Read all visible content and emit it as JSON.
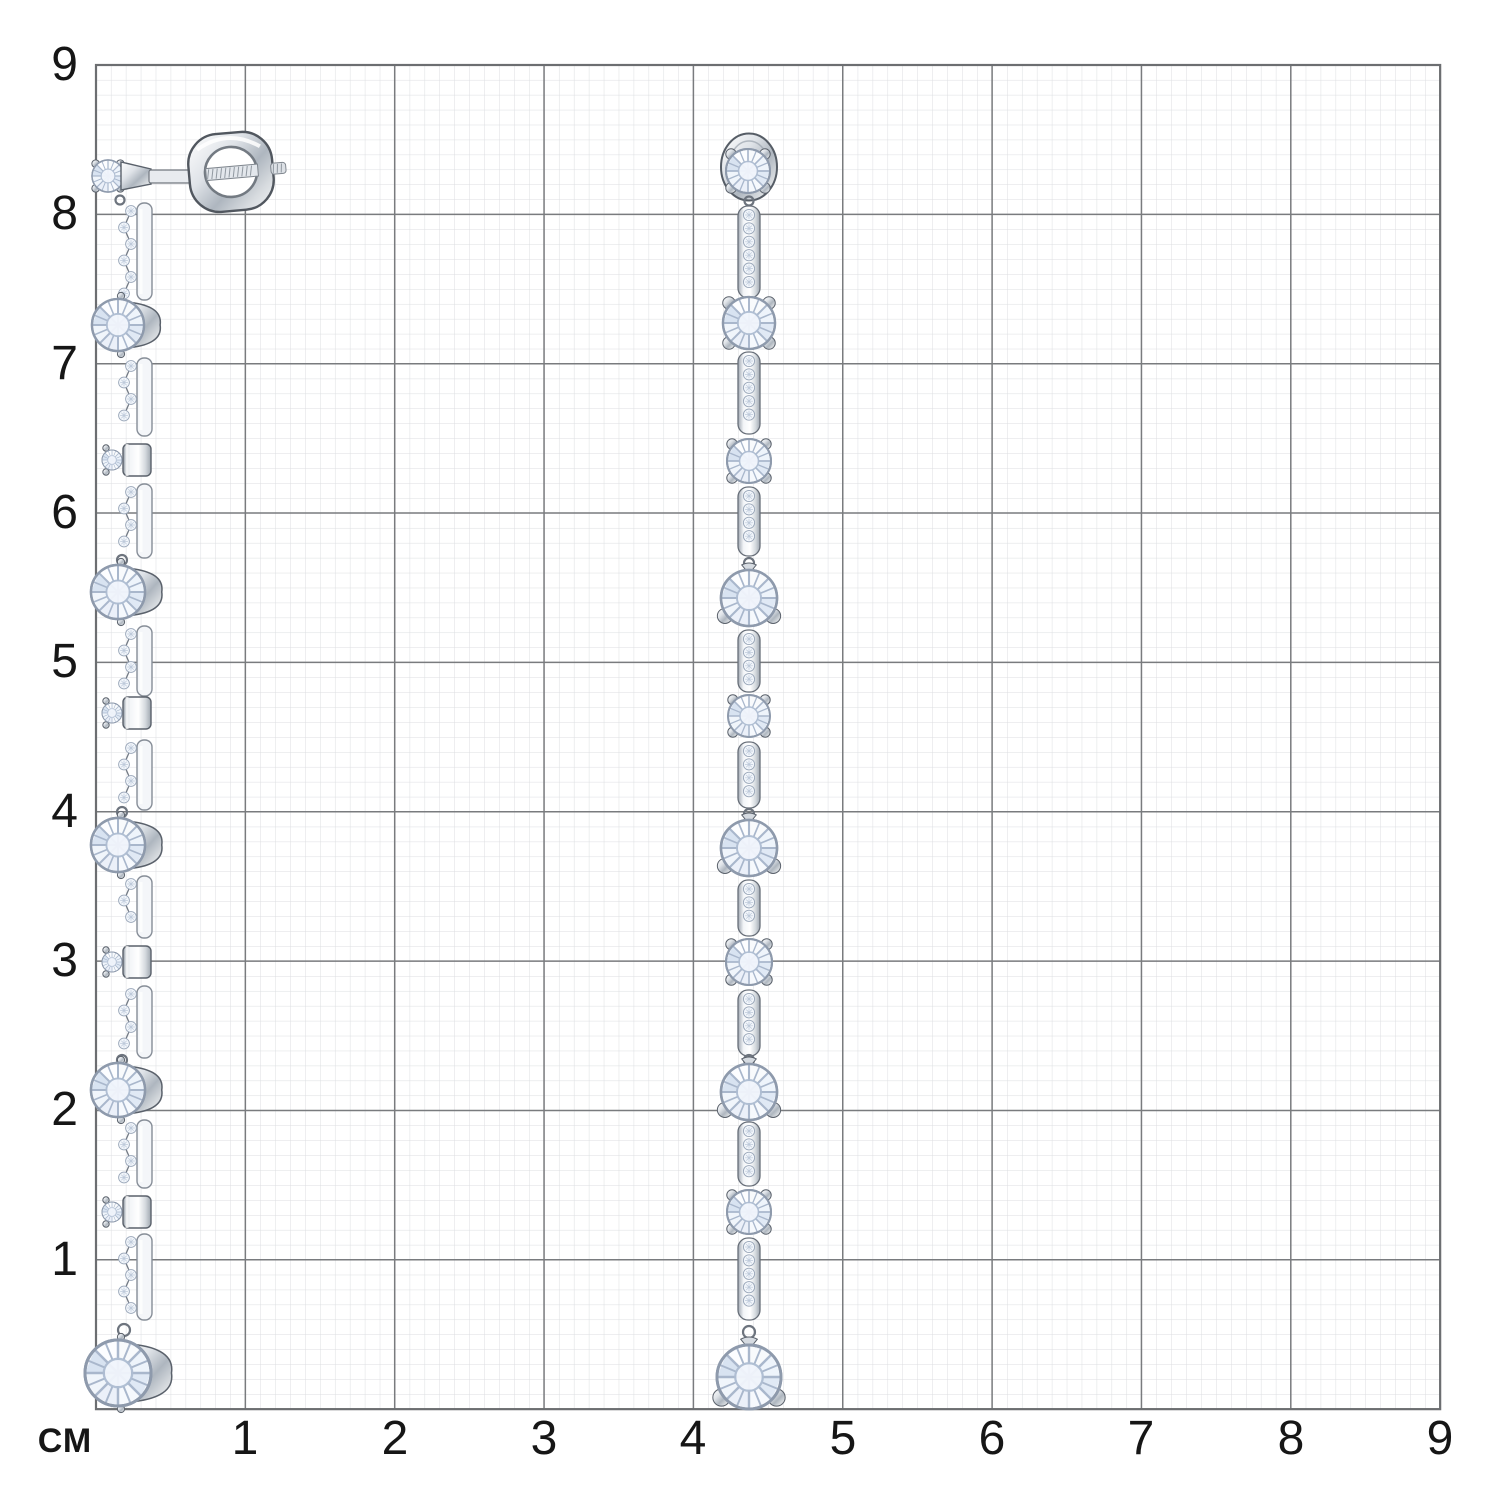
{
  "scene": {
    "kind": "jewelry-product-photo",
    "subject": "pair of silver drop earrings with round diamonds on centimeter grid paper",
    "background_color": "#ffffff"
  },
  "ruler_grid": {
    "unit_label": "СМ",
    "y_axis_labels": [
      "9",
      "8",
      "7",
      "6",
      "5",
      "4",
      "3",
      "2",
      "1"
    ],
    "x_axis_labels": [
      "1",
      "2",
      "3",
      "4",
      "5",
      "6",
      "7",
      "8",
      "9"
    ],
    "minor_line_color": "#dcdee1",
    "major_line_color": "#797b7e",
    "border_color": "#6c6e71",
    "label_color": "#161616"
  },
  "jewelry": {
    "left_figure": "earring-side-view-with-screw-back",
    "right_figure": "earring-front-view",
    "metal_color": "#c3cad2",
    "metal_edge_color": "#5a616b",
    "stone_color": "#f7f9fd",
    "stone_facet_color": "#a9b7cc"
  }
}
